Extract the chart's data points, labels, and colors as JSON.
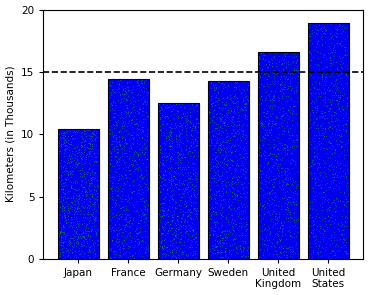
{
  "categories": [
    "Japan",
    "France",
    "Germany",
    "Sweden",
    "United\nKingdom",
    "United\nStates"
  ],
  "values": [
    10.4,
    14.4,
    12.5,
    14.3,
    16.6,
    18.9
  ],
  "bar_color": "#0000EE",
  "bar_edge_color": "#000000",
  "ylabel": "Kilometers (in Thousands)",
  "ylim": [
    0,
    20
  ],
  "yticks": [
    0,
    5,
    10,
    15,
    20
  ],
  "dashed_line_y": 15,
  "background_color": "#ffffff",
  "ylabel_fontsize": 7.5,
  "tick_fontsize": 7.5,
  "bar_width": 0.82
}
